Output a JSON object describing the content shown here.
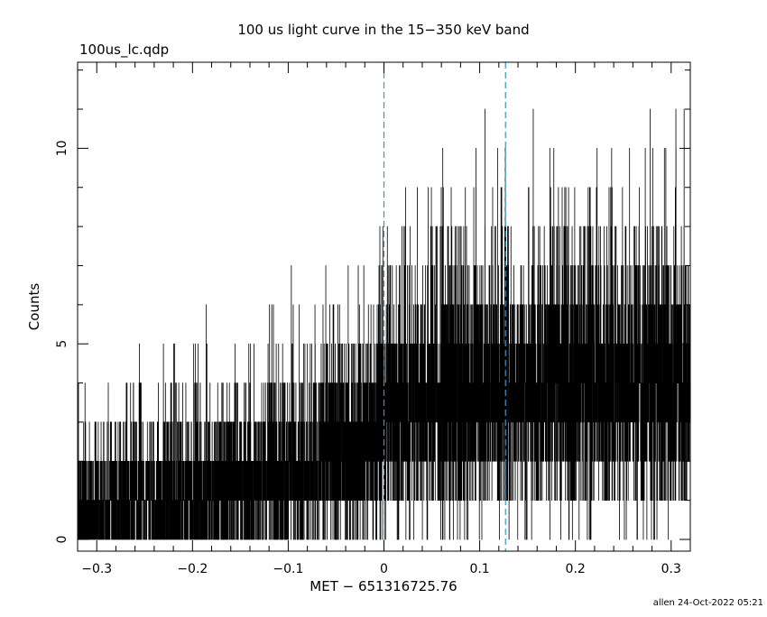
{
  "chart_data": {
    "type": "line",
    "title": "100 us light curve in the 15−350 keV band",
    "file_label": "100us_lc.qdp",
    "xlabel": "MET − 651316725.76",
    "ylabel": "Counts",
    "footer": "allen 24-Oct-2022 05:21",
    "xlim": [
      -0.32,
      0.32
    ],
    "ylim": [
      -0.3,
      12.2
    ],
    "x_ticks": [
      {
        "value": -0.3,
        "label": "−0.3"
      },
      {
        "value": -0.2,
        "label": "−0.2"
      },
      {
        "value": -0.1,
        "label": "−0.1"
      },
      {
        "value": 0,
        "label": "0"
      },
      {
        "value": 0.1,
        "label": "0.1"
      },
      {
        "value": 0.2,
        "label": "0.2"
      },
      {
        "value": 0.3,
        "label": "0.3"
      }
    ],
    "y_ticks": [
      {
        "value": 0,
        "label": "0"
      },
      {
        "value": 5,
        "label": "5"
      },
      {
        "value": 10,
        "label": "10"
      }
    ],
    "vertical_markers": [
      0.0,
      0.127
    ],
    "marker_color": "#2a9bd6",
    "series_color": "#000000",
    "bin_width": 0.0001,
    "mean_profile": [
      {
        "x": -0.32,
        "y": 0.7
      },
      {
        "x": -0.15,
        "y": 1.4
      },
      {
        "x": -0.01,
        "y": 2.6
      },
      {
        "x": 0.0,
        "y": 3.3
      },
      {
        "x": 0.05,
        "y": 3.6
      },
      {
        "x": 0.12,
        "y": 4.0
      },
      {
        "x": 0.2,
        "y": 4.2
      },
      {
        "x": 0.32,
        "y": 4.2
      }
    ]
  }
}
